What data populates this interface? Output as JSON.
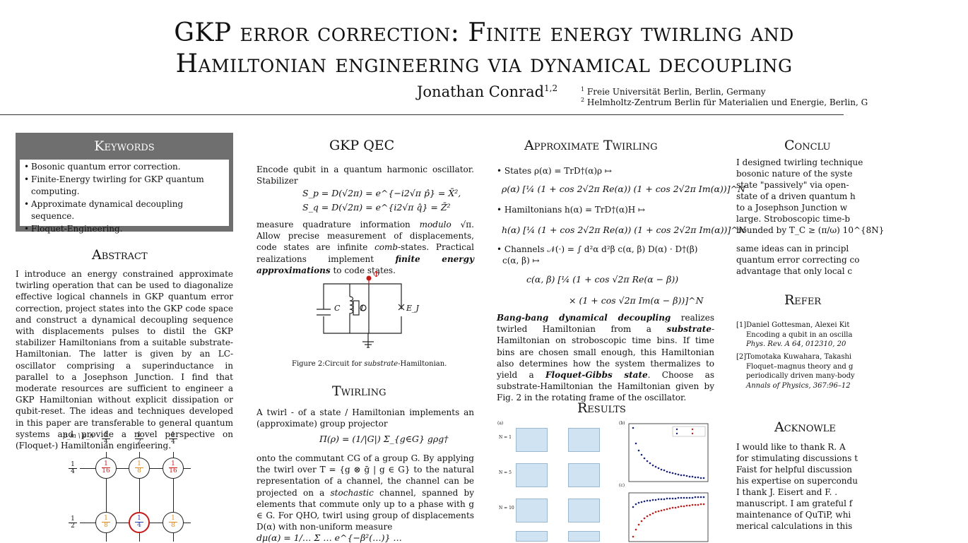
{
  "header": {
    "title_line1": "GKP error correction: Finite energy twirling and",
    "title_line2": "Hamiltonian engineering via dynamical decoupling",
    "author": "Jonathan Conrad",
    "author_sup": "1,2",
    "affiliations": [
      {
        "num": "1",
        "text": "Freie Universität Berlin, Berlin, Germany"
      },
      {
        "num": "2",
        "text": "Helmholtz-Zentrum Berlin für Materialien und Energie, Berlin, G"
      }
    ]
  },
  "keywords": {
    "heading": "Keywords",
    "items": [
      "Bosonic quantum error correction.",
      "Finite-Energy twirling for GKP quantum computing.",
      "Approximate dynamical decoupling sequence.",
      "Floquet-Engineering."
    ]
  },
  "abstract": {
    "heading": "Abstract",
    "text": "I introduce an energy constrained approximate twirling operation that can be used to diagonalize effective logical channels in GKP quantum error correction, project states into the GKP code space and construct a dynamical decoupling sequence with displacements pulses to distil the GKP stabilizer Hamiltonians from a suitable substrate-Hamiltonian. The latter is given by an LC-oscillator comprising a superinductance in parallel to a Josephson Junction. I find that moderate resources are sufficient to engineer a GKP Hamiltonian without explicit dissipation or qubit-reset. The ideas and techniques developed in this paper are transferable to general quantum systems and provide a novel perspective on (Floquet-) Hamiltonian engineering."
  },
  "lattice": {
    "axis_label": "p_m \\ p_n",
    "col_labels": [
      [
        "1",
        "4"
      ],
      [
        "1",
        "2"
      ],
      [
        "1",
        "4"
      ]
    ],
    "row_labels": [
      [
        "1",
        "4"
      ],
      [
        "1",
        "2"
      ]
    ],
    "cells": [
      [
        {
          "n": "1",
          "d": "16",
          "color": "#c61a1a"
        },
        {
          "n": "1",
          "d": "8",
          "color": "#e08a1e"
        },
        {
          "n": "1",
          "d": "16",
          "color": "#c61a1a"
        }
      ],
      [
        {
          "n": "1",
          "d": "8",
          "color": "#e08a1e"
        },
        {
          "n": "1",
          "d": "4",
          "color": "#2a3fb0"
        },
        {
          "n": "1",
          "d": "8",
          "color": "#e08a1e"
        }
      ]
    ]
  },
  "gkp_qec": {
    "heading": "GKP QEC",
    "intro": "Encode qubit in a quantum harmonic oscillator. Stabilizer",
    "eq1": "S_p = D(√2π) = e^{−i2√π p̂} = X̄²,",
    "eq2": "S_q = D(√2π) = e^{i2√π q̂} = Z̄²",
    "body_a": "measure quadrature information ",
    "body_modulo": "modulo",
    "body_b": " √π. Allow precise measurement of displacements, code states are infinite ",
    "body_comb": "comb",
    "body_c": "-states. Practical realizations implement ",
    "body_fea": "finite energy approximations",
    "body_d": " to code states.",
    "circuit_phi": "Φ",
    "circuit_C": "C",
    "circuit_L": "L",
    "circuit_EJ": "E_J",
    "figure_caption_a": "Figure 2:Circuit for ",
    "figure_caption_b": "substrate",
    "figure_caption_c": "-Hamiltonian."
  },
  "twirling": {
    "heading": "Twirling",
    "intro": "A twirl - of a state / Hamiltonian implements an (approximate) group projector",
    "eq": "Π(ρ) = (1/|G|) Σ_{g∈G} gρg†",
    "body_a": "onto the commutant CG of a group G. By applying the twirl over T = {g ⊗ ḡ | g ∈ G} to the natural representation of a channel, the channel can be projected on a ",
    "body_stoch": "stochastic",
    "body_b": " channel, spanned by elements that commute only up to a phase with g ∈ G. For QHO, twirl using group of displacements D(α) with non-uniform measure",
    "eq_tail": "dμ(α) = 1/… Σ … e^{−β²(…)} …"
  },
  "approx_twirling": {
    "heading": "Approximate Twirling",
    "b1_label": "States ρ(α) = TrD†(α)ρ ↦",
    "b1_eq": "ρ(α) [¼ (1 + cos 2√2π Re(α)) (1 + cos 2√2π Im(α))]^N",
    "b2_label": "Hamiltonians h(α) = TrD†(α)H ↦",
    "b2_eq": "h(α) [¼ (1 + cos 2√2π Re(α)) (1 + cos 2√2π Im(α))]^N",
    "b3_label": "Channels 𝒩(·) = ∫ d²α d²β c(α, β) D(α) · D†(β)",
    "b3_sub": "c(α, β) ↦",
    "b3_eq1": "c(α, β) [¼ (1 + cos √2π Re(α − β))",
    "b3_eq2": "× (1 + cos √2π Im(α − β))]^N",
    "bb_a": "Bang-bang dynamical decoupling",
    "bb_b": " realizes twirled Hamiltonian from a ",
    "bb_sub": "substrate",
    "bb_c": "-Hamiltonian on stroboscopic time bins. If time bins are chosen small enough, this Hamiltonian also determines how the system thermalizes to yield a ",
    "bb_fg": "Floquet-Gibbs state",
    "bb_d": ". Choose as substrate-Hamiltonian the Hamiltonian given by Fig. 2 in the rotating frame of the oscillator."
  },
  "results": {
    "heading": "Results",
    "panel_a": "(a)",
    "panel_b": "(b)",
    "panel_c": "(c)",
    "row_labels": [
      "N = 1",
      "N = 5",
      "N = 10"
    ]
  },
  "conclusion": {
    "heading": "Conclu",
    "text_lines": [
      "I designed twirling technique",
      "bosonic nature of the syste",
      "state \"passively\" via open-",
      "state of a driven quantum h",
      "to a Josephson Junction w",
      "large. Stroboscopic time-b",
      "bounded by T_C ≥ (π/ω) 10^{8N}",
      "same ideas can in principl",
      "quantum error correcting co",
      "advantage that only local c"
    ]
  },
  "references": {
    "heading": "Refer",
    "items": [
      {
        "num": "[1]",
        "line1": "Daniel Gottesman, Alexei Kit",
        "line2": "Encoding a qubit in an oscilla",
        "line3": "Phys. Rev. A 64, 012310, 20"
      },
      {
        "num": "[2]",
        "line1": "Tomotaka Kuwahara, Takashi",
        "line2": "Floquet–magnus theory and g",
        "line3": "periodically driven many-body",
        "line4": "Annals of Physics, 367:96–12"
      }
    ]
  },
  "acknowledgements": {
    "heading": "Acknowle",
    "text_lines": [
      "I would like to thank R. A",
      "for stimulating discussions t",
      "Faist for helpful discussion",
      "his expertise on supercondu",
      "I thank J. Eisert and F. .",
      "manuscript. I am grateful f",
      "maintenance of QuTiP, whi",
      "merical calculations in this"
    ]
  },
  "colors": {
    "accent_red": "#c61a1a",
    "accent_orange": "#e08a1e",
    "accent_blue": "#2a3fb0",
    "keyword_box": "#6f6f6f"
  }
}
